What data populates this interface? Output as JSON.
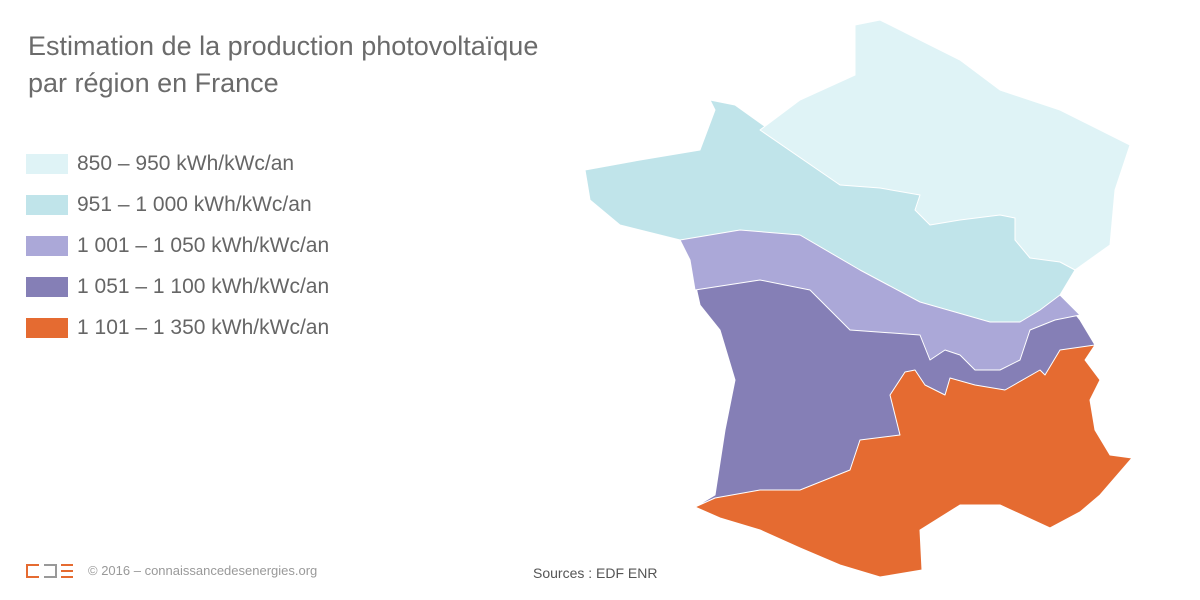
{
  "title_line1": "Estimation de la production photovoltaïque",
  "title_line2": "par région en France",
  "legend": [
    {
      "label": "850 – 950 kWh/kWc/an",
      "color": "#dff3f6"
    },
    {
      "label": "951 – 1 000 kWh/kWc/an",
      "color": "#c0e4ea"
    },
    {
      "label": "1 001 – 1 050 kWh/kWc/an",
      "color": "#aba8d8"
    },
    {
      "label": "1 051 – 1 100 kWh/kWc/an",
      "color": "#857fb6"
    },
    {
      "label": "1 101 – 1 350 kWh/kWc/an",
      "color": "#e56b31"
    }
  ],
  "footer": {
    "copyright": "© 2016 – connaissancedesenergies.org",
    "logo_text": "CDE"
  },
  "sources": "Sources : EDF ENR"
}
